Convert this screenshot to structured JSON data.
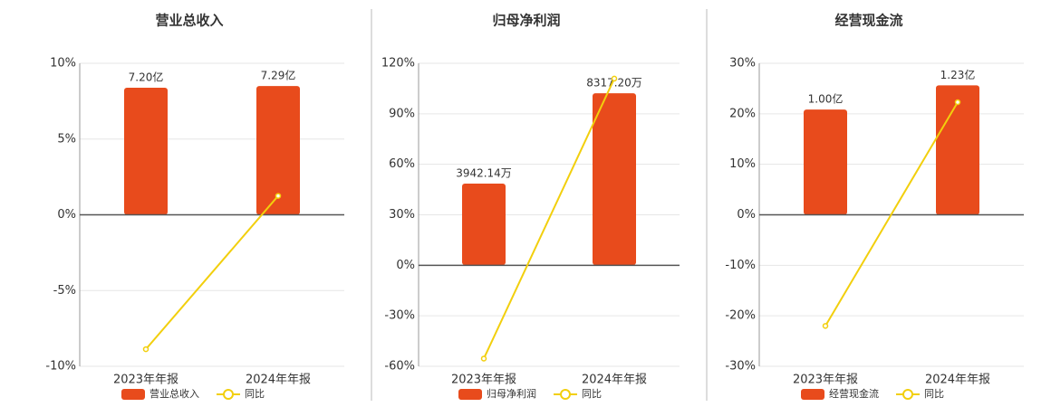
{
  "chart_data": [
    {
      "type": "bar",
      "title": "营业总收入",
      "categories": [
        "2023年年报",
        "2024年年报"
      ],
      "series": [
        {
          "name": "营业总收入",
          "type": "bar",
          "axis": "y2",
          "color": "#e84b1c",
          "values": [
            7.2,
            7.29
          ],
          "value_labels": [
            "7.20亿",
            "7.29亿"
          ]
        },
        {
          "name": "同比",
          "type": "line",
          "color": "#f2cf0d",
          "values": [
            -8.87,
            1.25
          ]
        }
      ],
      "ylim": [
        -10,
        10
      ],
      "yticks": [
        {
          "value": -10,
          "label": "-10%"
        },
        {
          "value": -5,
          "label": "-5%"
        },
        {
          "value": 0,
          "label": "0%"
        },
        {
          "value": 5,
          "label": "5%"
        },
        {
          "value": 10,
          "label": "10%"
        }
      ],
      "y2lim": [
        -8.58,
        8.58
      ],
      "grid": true
    },
    {
      "type": "bar",
      "title": "归母净利润",
      "categories": [
        "2023年年报",
        "2024年年报"
      ],
      "series": [
        {
          "name": "归母净利润",
          "type": "bar",
          "axis": "y2",
          "color": "#e84b1c",
          "values": [
            3942.14,
            8317.2
          ],
          "value_labels": [
            "3942.14万",
            "8317.20万"
          ]
        },
        {
          "name": "同比",
          "type": "line",
          "color": "#f2cf0d",
          "values": [
            -55.4,
            110.9
          ]
        }
      ],
      "ylim": [
        -60,
        120
      ],
      "yticks": [
        {
          "value": -60,
          "label": "-60%"
        },
        {
          "value": -30,
          "label": "-30%"
        },
        {
          "value": 0,
          "label": "0%"
        },
        {
          "value": 30,
          "label": "30%"
        },
        {
          "value": 60,
          "label": "60%"
        },
        {
          "value": 90,
          "label": "90%"
        },
        {
          "value": 120,
          "label": "120%"
        }
      ],
      "y2lim": [
        -4905,
        9767
      ],
      "grid": true
    },
    {
      "type": "bar",
      "title": "经营现金流",
      "categories": [
        "2023年年报",
        "2024年年报"
      ],
      "series": [
        {
          "name": "经营现金流",
          "type": "bar",
          "axis": "y2",
          "color": "#e84b1c",
          "values": [
            1.0,
            1.23
          ],
          "value_labels": [
            "1.00亿",
            "1.23亿"
          ]
        },
        {
          "name": "同比",
          "type": "line",
          "color": "#f2cf0d",
          "values": [
            -22.0,
            22.3
          ]
        }
      ],
      "ylim": [
        -30,
        30
      ],
      "yticks": [
        {
          "value": -30,
          "label": "-30%"
        },
        {
          "value": -20,
          "label": "-20%"
        },
        {
          "value": -10,
          "label": "-10%"
        },
        {
          "value": 0,
          "label": "0%"
        },
        {
          "value": 10,
          "label": "10%"
        },
        {
          "value": 20,
          "label": "20%"
        },
        {
          "value": 30,
          "label": "30%"
        }
      ],
      "y2lim": [
        -1.44,
        1.44
      ],
      "grid": true
    }
  ]
}
